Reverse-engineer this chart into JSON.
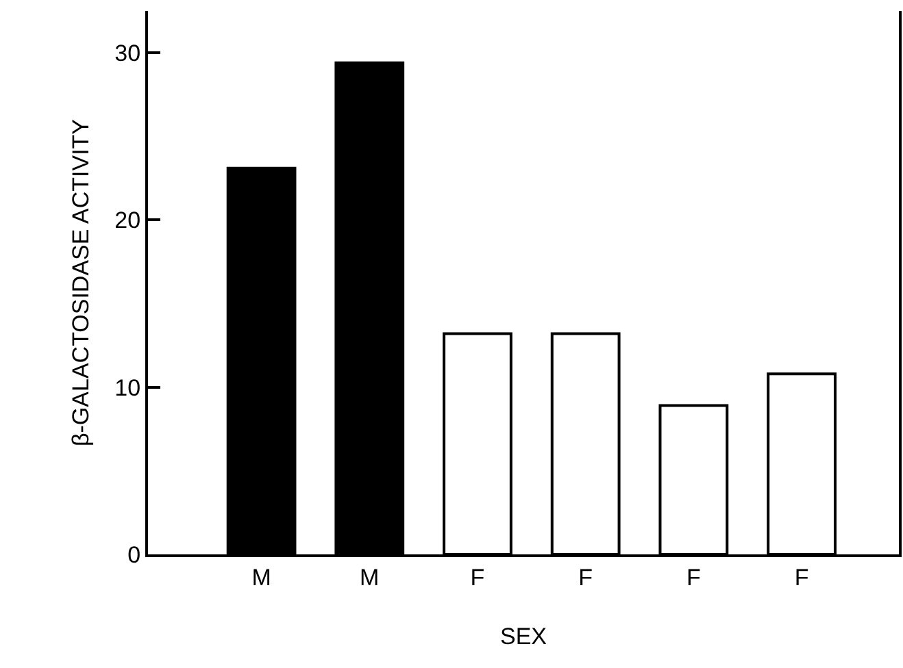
{
  "chart_data": {
    "type": "bar",
    "xlabel": "SEX",
    "ylabel": "β-GALACTOSIDASE ACTIVITY",
    "categories": [
      "M",
      "M",
      "F",
      "F",
      "F",
      "F"
    ],
    "values": [
      23.1,
      29.4,
      13.2,
      13.2,
      8.9,
      10.8
    ],
    "colors": [
      "#000000",
      "#000000",
      "#ffffff",
      "#ffffff",
      "#ffffff",
      "#ffffff"
    ],
    "ylim": [
      0,
      32.5
    ],
    "yticks": [
      0,
      10,
      20,
      30
    ],
    "grid": false
  }
}
